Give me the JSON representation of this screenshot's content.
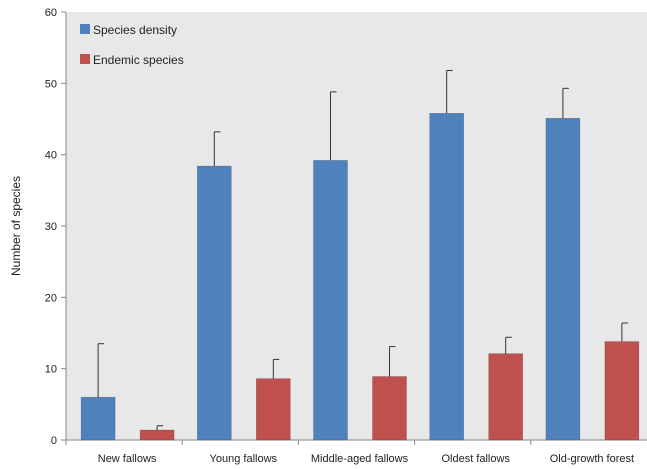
{
  "chart_data": {
    "type": "bar",
    "title": "",
    "xlabel": "",
    "ylabel": "Number of species",
    "ylim": [
      0,
      60
    ],
    "yticks": [
      0,
      10,
      20,
      30,
      40,
      50,
      60
    ],
    "grid": false,
    "legend_position": "top-left",
    "plot_background": "#e8e8e8",
    "categories": [
      "New fallows",
      "Young fallows",
      "Middle-aged fallows",
      "Oldest fallows",
      "Old-growth forest"
    ],
    "series": [
      {
        "name": "Species density",
        "color": "#4f81bd",
        "values": [
          6.0,
          38.4,
          39.2,
          45.8,
          45.1
        ],
        "error_upper": [
          7.5,
          4.8,
          9.6,
          6.0,
          4.2
        ]
      },
      {
        "name": "Endemic species",
        "color": "#c0504d",
        "values": [
          1.4,
          8.6,
          8.9,
          12.1,
          13.8
        ],
        "error_upper": [
          0.6,
          2.7,
          4.2,
          2.3,
          2.6
        ]
      }
    ]
  }
}
